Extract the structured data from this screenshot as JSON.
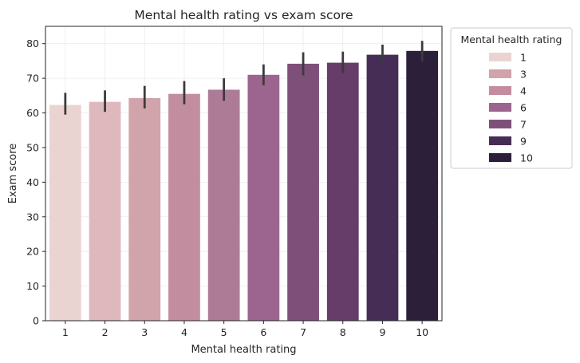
{
  "chart_data": {
    "type": "bar",
    "title": "Mental health rating vs exam score",
    "xlabel": "Mental health rating",
    "ylabel": "Exam score",
    "categories": [
      "1",
      "2",
      "3",
      "4",
      "5",
      "6",
      "7",
      "8",
      "9",
      "10"
    ],
    "values": [
      62.3,
      63.2,
      64.3,
      65.5,
      66.7,
      71.0,
      74.2,
      74.5,
      76.8,
      77.9
    ],
    "error_low": [
      59.5,
      60.3,
      61.3,
      62.5,
      63.5,
      68.0,
      70.8,
      71.5,
      73.8,
      74.8
    ],
    "error_high": [
      65.8,
      66.5,
      67.8,
      69.2,
      70.0,
      74.0,
      77.5,
      77.7,
      79.7,
      80.8
    ],
    "colors": [
      "#ead4d1",
      "#dfb8bd",
      "#d1a3ab",
      "#c28e9f",
      "#ae7b96",
      "#9b6590",
      "#7e5079",
      "#653d68",
      "#462d55",
      "#2b1f3a"
    ],
    "ylim": [
      0,
      85
    ],
    "yticks": [
      0,
      10,
      20,
      30,
      40,
      50,
      60,
      70,
      80
    ],
    "grid": true,
    "legend": {
      "title": "Mental health rating",
      "position": "outside-upper-right",
      "entries": [
        {
          "label": "1",
          "color": "#ead4d1"
        },
        {
          "label": "3",
          "color": "#d1a3ab"
        },
        {
          "label": "4",
          "color": "#c28e9f"
        },
        {
          "label": "6",
          "color": "#9b6590"
        },
        {
          "label": "7",
          "color": "#7e5079"
        },
        {
          "label": "9",
          "color": "#462d55"
        },
        {
          "label": "10",
          "color": "#2b1f3a"
        }
      ]
    }
  }
}
